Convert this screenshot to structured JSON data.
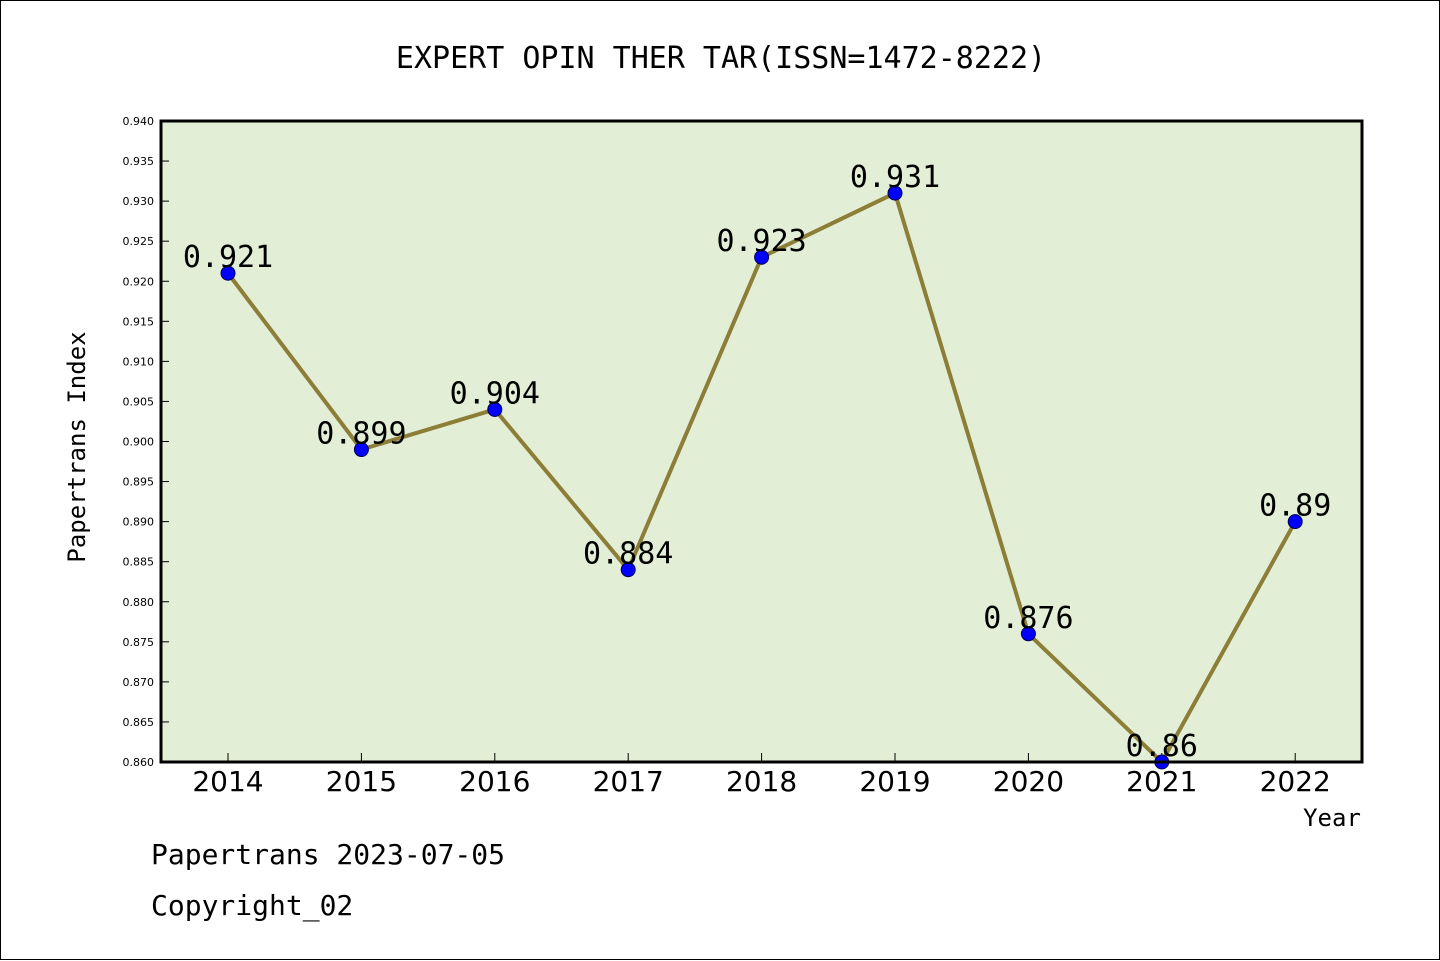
{
  "chart_data": {
    "type": "line",
    "title": "EXPERT OPIN THER TAR(ISSN=1472-8222)",
    "xlabel": "Year",
    "ylabel": "Papertrans Index",
    "categories": [
      "2014",
      "2015",
      "2016",
      "2017",
      "2018",
      "2019",
      "2020",
      "2021",
      "2022"
    ],
    "values": [
      0.921,
      0.899,
      0.904,
      0.884,
      0.923,
      0.931,
      0.876,
      0.86,
      0.89
    ],
    "data_labels": [
      "0.921",
      "0.899",
      "0.904",
      "0.884",
      "0.923",
      "0.931",
      "0.876",
      "0.86",
      "0.89"
    ],
    "ylim": [
      0.86,
      0.94
    ],
    "yticks": [
      "0.860",
      "0.865",
      "0.870",
      "0.875",
      "0.880",
      "0.885",
      "0.890",
      "0.895",
      "0.900",
      "0.905",
      "0.910",
      "0.915",
      "0.920",
      "0.925",
      "0.930",
      "0.935",
      "0.940"
    ],
    "grid": false,
    "colors": {
      "plot_background": "#e2efd6",
      "line": "#8c7d37",
      "marker": "#0000ff"
    }
  },
  "footer": {
    "line1": "Papertrans 2023-07-05",
    "line2": "Copyright_02"
  }
}
